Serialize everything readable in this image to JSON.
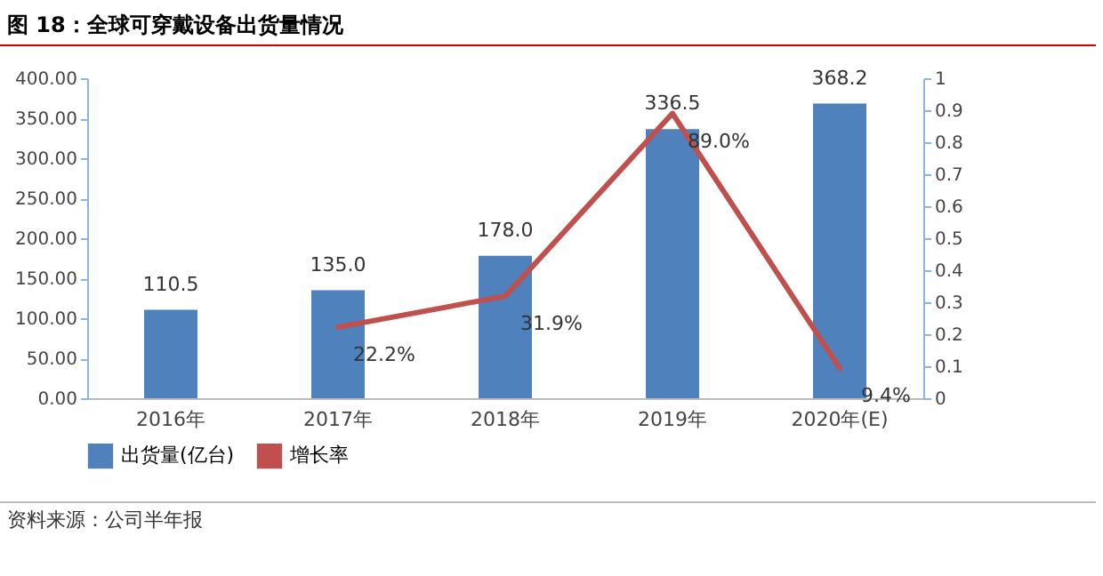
{
  "chart_data": {
    "type": "bar",
    "title": "图 18：全球可穿戴设备出货量情况",
    "annotations": [
      "资料来源：公司半年报"
    ],
    "categories": [
      "2016年",
      "2017年",
      "2018年",
      "2019年",
      "2020年(E)"
    ],
    "series": [
      {
        "name": "出货量(亿台)",
        "color": "#4f81bd",
        "values": [
          110.5,
          135.0,
          178.0,
          336.5,
          368.2
        ],
        "value_labels": [
          "110.5",
          "135.0",
          "178.0",
          "336.5",
          "368.2"
        ]
      },
      {
        "name": "增长率",
        "type": "line",
        "axis": "y2",
        "color": "#c0504d",
        "values": [
          null,
          0.222,
          0.319,
          0.89,
          0.094
        ],
        "value_labels": [
          null,
          "22.2%",
          "31.9%",
          "89.0%",
          "9.4%"
        ]
      }
    ],
    "ylim": [
      0,
      400
    ],
    "yticks": [
      {
        "value": 0,
        "label": "0.00"
      },
      {
        "value": 50,
        "label": "50.00"
      },
      {
        "value": 100,
        "label": "100.00"
      },
      {
        "value": 150,
        "label": "150.00"
      },
      {
        "value": 200,
        "label": "200.00"
      },
      {
        "value": 250,
        "label": "250.00"
      },
      {
        "value": 300,
        "label": "300.00"
      },
      {
        "value": 350,
        "label": "350.00"
      },
      {
        "value": 400,
        "label": "400.00"
      }
    ],
    "y2lim": [
      0,
      1
    ],
    "y2ticks": [
      {
        "value": 0,
        "label": "0"
      },
      0.1,
      0.2,
      0.3,
      0.4,
      0.5,
      0.6,
      0.7,
      0.8,
      0.9,
      {
        "value": 1,
        "label": "1"
      }
    ],
    "legend": "bottom"
  }
}
